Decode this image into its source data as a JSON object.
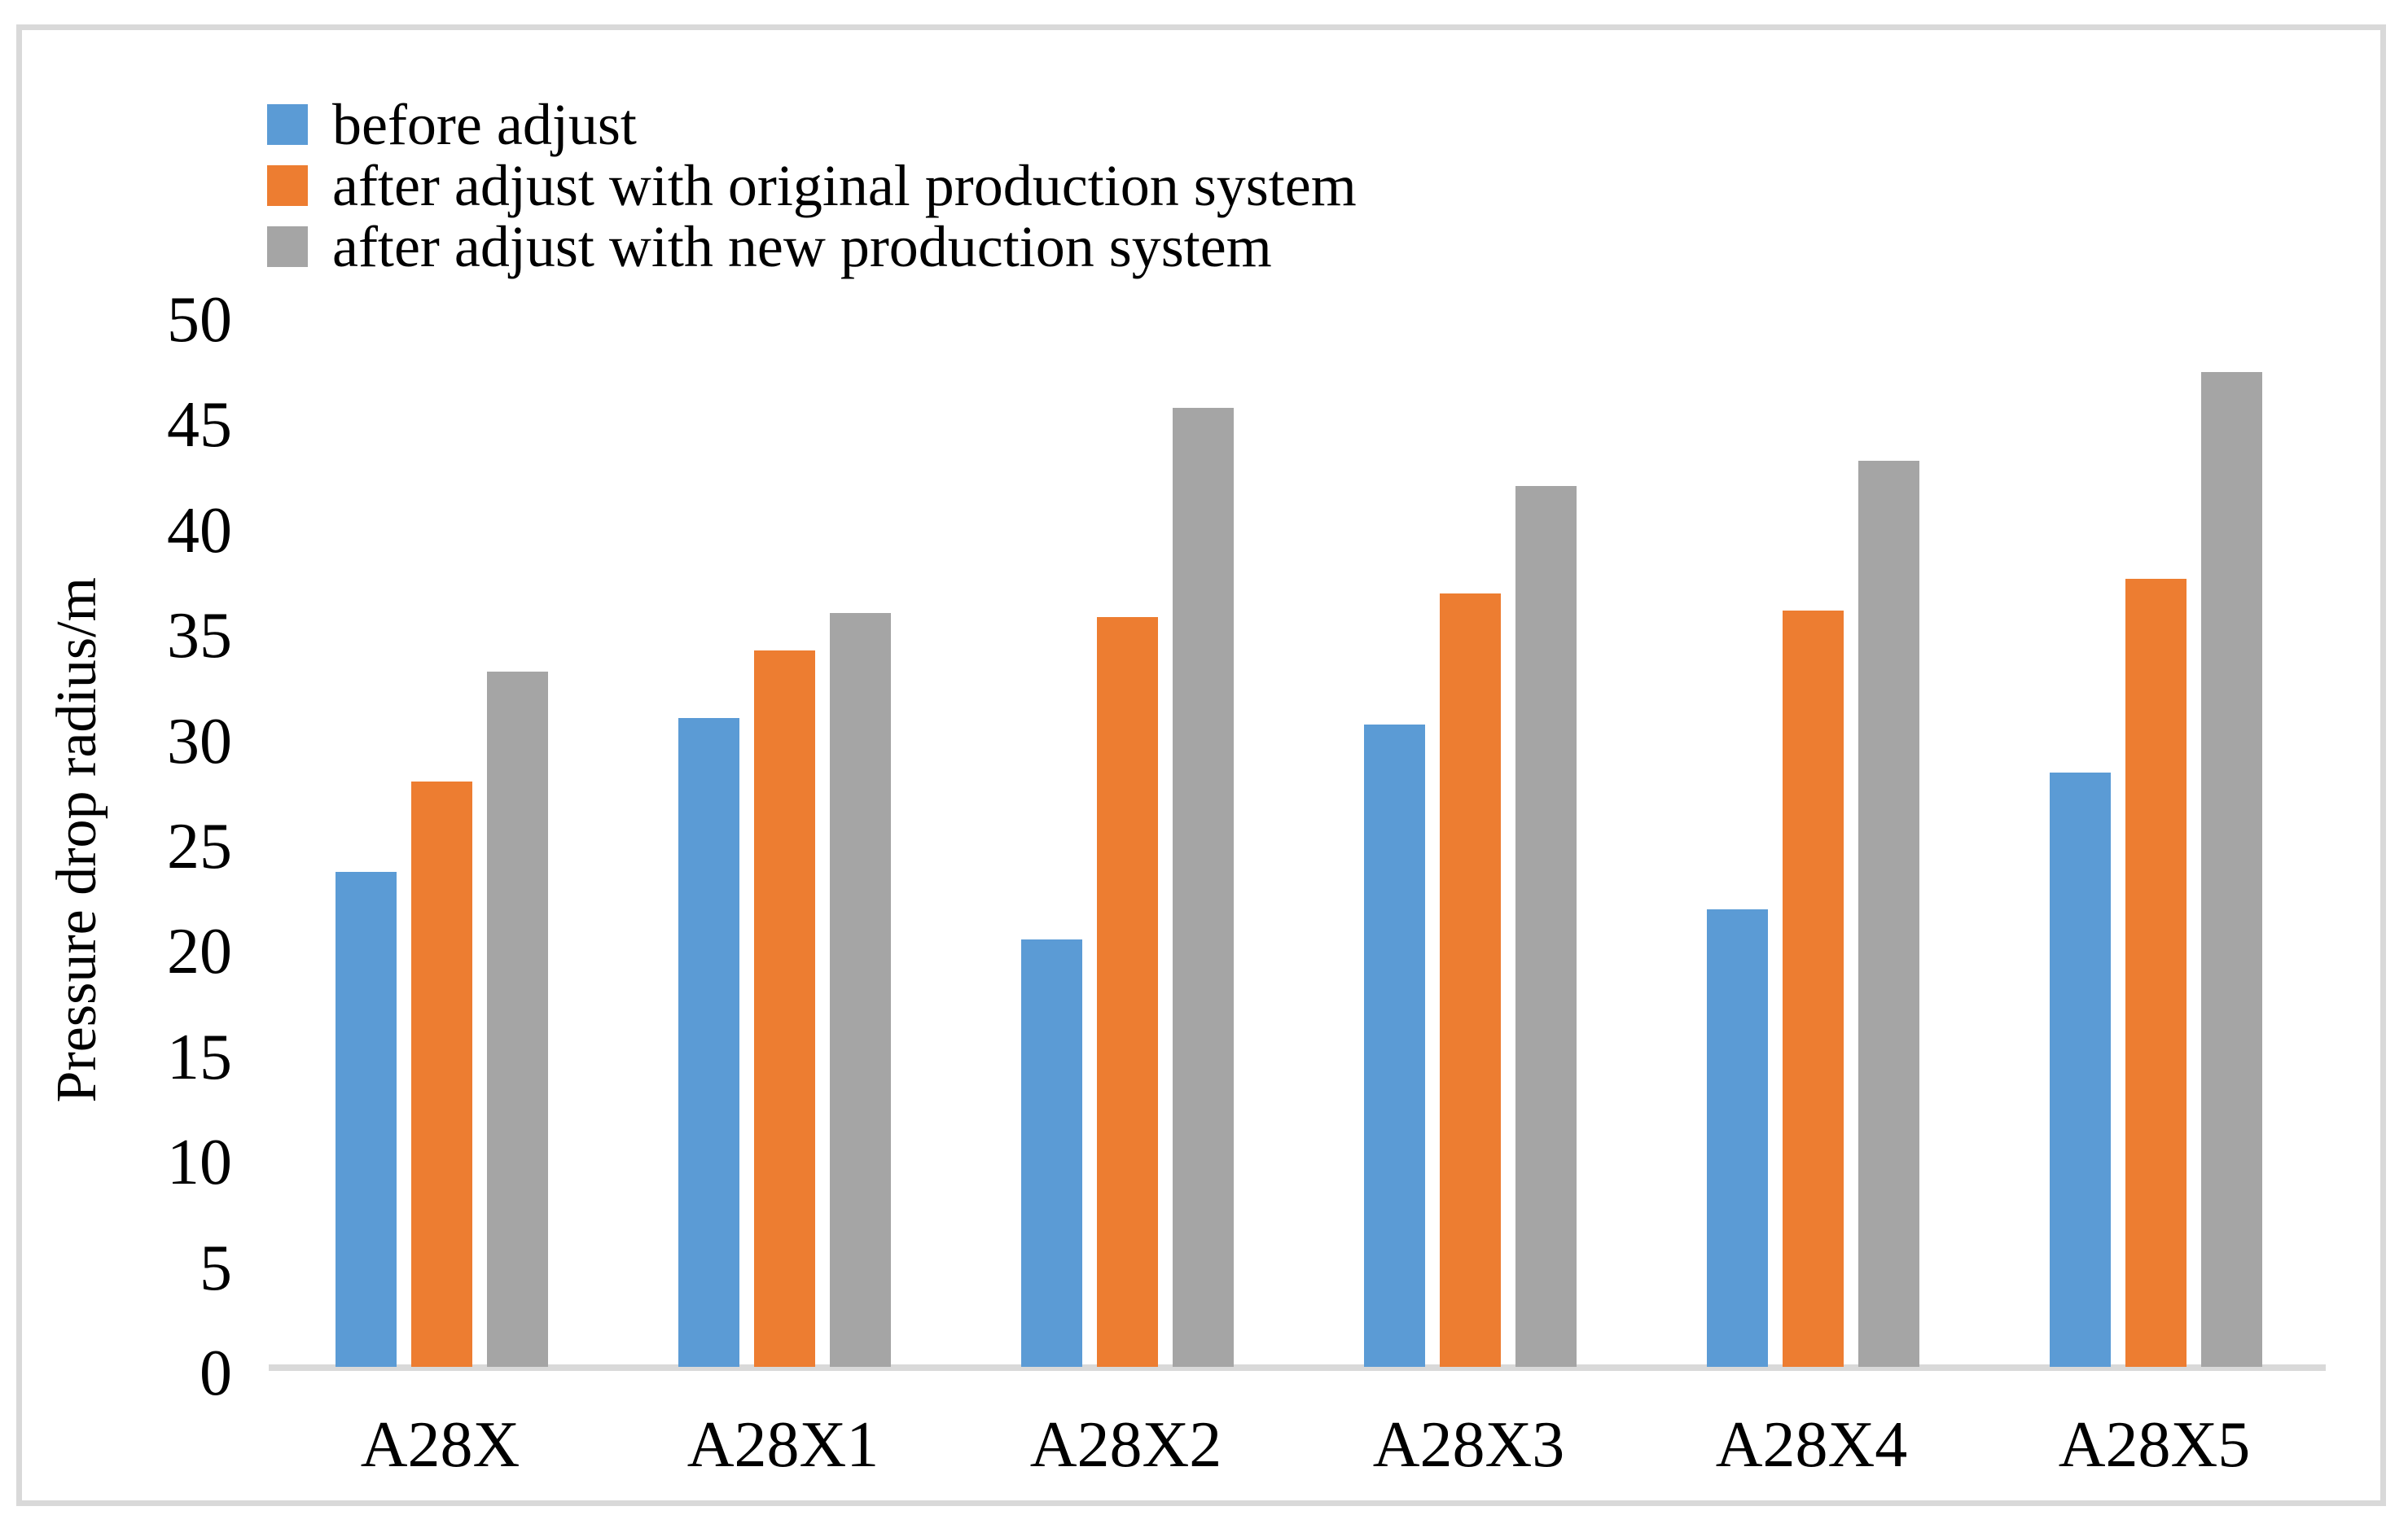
{
  "figure": {
    "background": "#ffffff",
    "border_color": "#d9d9d9",
    "axis_line_color": "#d9d9d9",
    "text_color": "#000000"
  },
  "chart_data": {
    "type": "bar",
    "title": "",
    "categories": [
      "A28X",
      "A28X1",
      "A28X2",
      "A28X3",
      "A28X4",
      "A28X5"
    ],
    "series": [
      {
        "name": "before adjust",
        "color": "#5B9BD5",
        "values": [
          23.5,
          30.8,
          20.3,
          30.5,
          21.7,
          28.2
        ]
      },
      {
        "name": "after adjust with original production system",
        "color": "#ED7D31",
        "values": [
          27.8,
          34.0,
          35.6,
          36.7,
          35.9,
          37.4
        ]
      },
      {
        "name": "after adjust with new production system",
        "color": "#A5A5A5",
        "values": [
          33.0,
          35.8,
          45.5,
          41.8,
          43.0,
          47.2
        ]
      }
    ],
    "xlabel": "",
    "ylabel": "Pressure drop radius/m",
    "ylim": [
      0,
      50
    ],
    "yticks": [
      0,
      5,
      10,
      15,
      20,
      25,
      30,
      35,
      40,
      45,
      50
    ],
    "grid": false,
    "legend_position": "top-left"
  }
}
